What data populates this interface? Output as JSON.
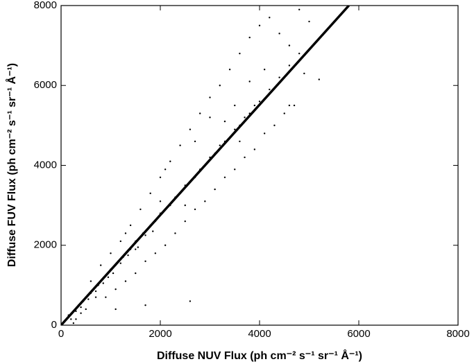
{
  "chart_data": {
    "type": "scatter",
    "xlabel": "Diffuse NUV Flux (ph cm⁻² s⁻¹ sr⁻¹ Å⁻¹)",
    "ylabel": "Diffuse FUV Flux (ph cm⁻² s⁻¹ sr⁻¹ Å⁻¹)",
    "xlim": [
      0,
      8000
    ],
    "ylim": [
      0,
      8000
    ],
    "xticks": [
      0,
      2000,
      4000,
      6000,
      8000
    ],
    "yticks": [
      0,
      2000,
      4000,
      6000,
      8000
    ],
    "series": [
      {
        "color": "#000000",
        "x": [
          200,
          300,
          350,
          400,
          450,
          500,
          550,
          600,
          650,
          700,
          750,
          800,
          850,
          900,
          950,
          1000,
          1050,
          1100,
          1150,
          1200,
          1250,
          1300,
          1350,
          1400,
          1450,
          1500,
          1550,
          1600,
          1650,
          1700,
          1750,
          1800,
          1850,
          1900,
          1950,
          2000,
          2100,
          2200,
          2300,
          2400,
          2500,
          2600,
          2700,
          2800,
          2900,
          3000,
          3100,
          3200,
          3300,
          3400,
          3500,
          3600,
          3700,
          3800,
          3900,
          4000,
          4200,
          4400,
          4600,
          4800,
          600,
          800,
          1000,
          1200,
          1400,
          1600,
          1800,
          2000,
          2200,
          2400,
          2600,
          2800,
          3000,
          3200,
          3400,
          3600,
          3800,
          4000,
          4200,
          4400,
          4600,
          900,
          1100,
          1300,
          1500,
          1700,
          1900,
          2100,
          2300,
          2500,
          2700,
          2900,
          3100,
          3300,
          3500,
          3700,
          3900,
          4100,
          4300,
          4500,
          4700,
          5200,
          4900,
          4600,
          2500,
          1700,
          1100,
          2600,
          3000,
          3300,
          2700,
          3600,
          4100,
          2100,
          1500,
          700,
          400,
          300,
          150,
          250,
          500,
          1300,
          2000,
          4800,
          5000,
          3800,
          3500
        ],
        "values": [
          150,
          350,
          500,
          450,
          600,
          700,
          650,
          800,
          900,
          850,
          1000,
          1100,
          1050,
          1250,
          1200,
          1400,
          1300,
          1500,
          1600,
          1550,
          1700,
          1800,
          1750,
          1900,
          2000,
          2100,
          1950,
          2200,
          2300,
          2250,
          2400,
          2500,
          2350,
          2600,
          2700,
          2800,
          2900,
          3000,
          3200,
          3300,
          3500,
          3600,
          3700,
          3900,
          4000,
          4200,
          4300,
          4500,
          4600,
          4700,
          4900,
          5000,
          5200,
          5300,
          5500,
          5600,
          5900,
          6200,
          6500,
          6800,
          1100,
          1500,
          1800,
          2100,
          2500,
          2900,
          3300,
          3700,
          4100,
          4500,
          4900,
          5300,
          5700,
          6000,
          6400,
          6800,
          7200,
          7500,
          7700,
          7300,
          7000,
          700,
          900,
          1100,
          1300,
          1600,
          1800,
          2000,
          2300,
          2600,
          2900,
          3100,
          3400,
          3700,
          3900,
          4200,
          4400,
          4800,
          5000,
          5300,
          5500,
          6150,
          6300,
          5500,
          3000,
          500,
          400,
          600,
          5200,
          5100,
          4600,
          4600,
          6400,
          3900,
          1900,
          700,
          300,
          150,
          250,
          50,
          400,
          2300,
          3100,
          7900,
          7600,
          6100,
          5500
        ]
      },
      {
        "type": "line",
        "color": "#000000",
        "x": [
          0,
          5800
        ],
        "values": [
          0,
          8000
        ]
      }
    ]
  }
}
